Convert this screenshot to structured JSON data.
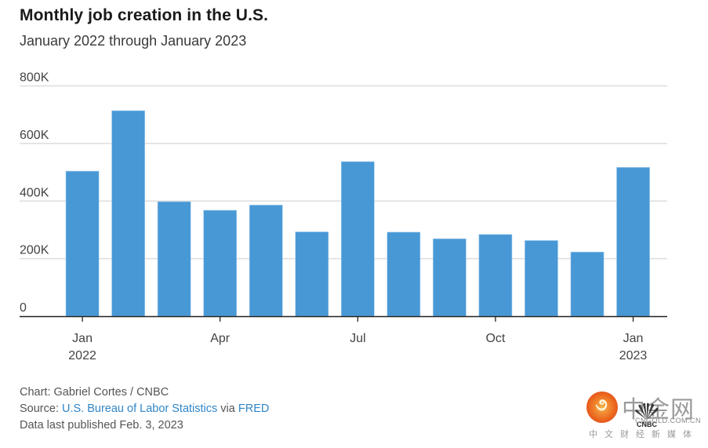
{
  "header": {
    "title": "Monthly job creation in the U.S.",
    "subtitle": "January 2022 through January 2023"
  },
  "chart_data": {
    "type": "bar",
    "title": "Monthly job creation in the U.S.",
    "subtitle": "January 2022 through January 2023",
    "xlabel": "",
    "ylabel": "",
    "categories": [
      "2022-01",
      "2022-02",
      "2022-03",
      "2022-04",
      "2022-05",
      "2022-06",
      "2022-07",
      "2022-08",
      "2022-09",
      "2022-10",
      "2022-11",
      "2022-12",
      "2023-01"
    ],
    "values": [
      504000,
      714000,
      398000,
      368000,
      386000,
      293000,
      537000,
      292000,
      269000,
      284000,
      263000,
      223000,
      517000
    ],
    "ylim": [
      0,
      800000
    ],
    "yticks": [
      {
        "value": 0,
        "label": "0"
      },
      {
        "value": 200000,
        "label": "200K"
      },
      {
        "value": 400000,
        "label": "400K"
      },
      {
        "value": 600000,
        "label": "600K"
      },
      {
        "value": 800000,
        "label": "800K"
      }
    ],
    "xticks": [
      {
        "index": 0,
        "label": "Jan",
        "sublabel": "2022"
      },
      {
        "index": 3,
        "label": "Apr",
        "sublabel": ""
      },
      {
        "index": 6,
        "label": "Jul",
        "sublabel": ""
      },
      {
        "index": 9,
        "label": "Oct",
        "sublabel": ""
      },
      {
        "index": 12,
        "label": "Jan",
        "sublabel": "2023"
      }
    ],
    "grid": true,
    "legend": "none",
    "bar_color": "#4898d6"
  },
  "footer": {
    "credit": "Chart: Gabriel Cortes / CNBC",
    "source_prefix": "Source: ",
    "source_link1": "U.S. Bureau of Labor Statistics",
    "source_mid": " via ",
    "source_link2": "FRED",
    "published": "Data last published Feb. 3, 2023"
  },
  "watermark": {
    "brand_cn": "中金网",
    "domain": "CNGOLD.COM.CN",
    "tagline": "中文财经新媒体",
    "cnbc": "CNBC"
  },
  "colors": {
    "bar": "#4898d6",
    "grid": "#dddddd",
    "axis": "#222222",
    "link": "#2f86c9"
  }
}
